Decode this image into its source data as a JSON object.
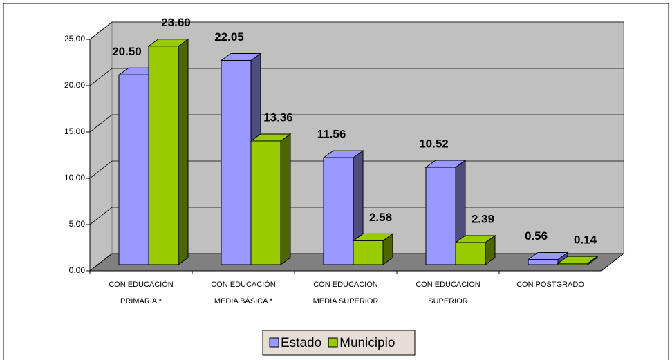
{
  "chart_data": {
    "type": "bar3d",
    "categories": [
      [
        "CON EDUCACIÓN",
        "PRIMARIA *"
      ],
      [
        "CON EDUCACIÓN",
        "MEDIA BÁSICA *"
      ],
      [
        "CON EDUCACION",
        "MEDIA SUPERIOR"
      ],
      [
        "CON EDUCACION",
        "SUPERIOR"
      ],
      [
        "CON POSTGRADO"
      ]
    ],
    "series": [
      {
        "name": "Estado",
        "color": "#9999ff",
        "side": "#4d4d80",
        "values": [
          20.5,
          22.05,
          11.56,
          10.52,
          0.56
        ],
        "value_labels": [
          "20.50",
          "22.05",
          "11.56",
          "10.52",
          "0.56"
        ]
      },
      {
        "name": "Municipio",
        "color": "#99cc00",
        "side": "#4d6600",
        "values": [
          23.6,
          13.36,
          2.58,
          2.39,
          0.14
        ],
        "value_labels": [
          "23.60",
          "13.36",
          "2.58",
          "2.39",
          "0.14"
        ]
      }
    ],
    "ylim": [
      0,
      25
    ],
    "yticks": [
      {
        "value": 0,
        "label": "0.00"
      },
      {
        "value": 5,
        "label": "5.00"
      },
      {
        "value": 10,
        "label": "10.00"
      },
      {
        "value": 15,
        "label": "15.00"
      },
      {
        "value": 20,
        "label": "20.00"
      },
      {
        "value": 25,
        "label": "25.00"
      }
    ],
    "grid": true,
    "legend": "bottom"
  }
}
